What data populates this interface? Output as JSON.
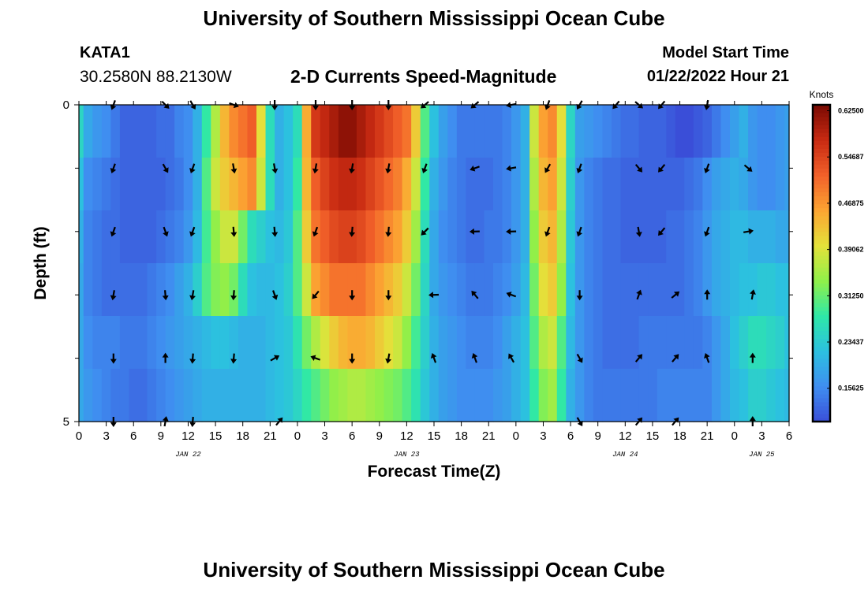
{
  "header": {
    "title": "University of Southern Mississippi Ocean Cube",
    "station": "KATA1",
    "coordinates": "30.2580N  88.2130W",
    "subtitle": "2-D Currents Speed-Magnitude",
    "model_start_label": "Model Start Time",
    "model_start_value": "01/22/2022 Hour 21"
  },
  "footer": {
    "title": "University of Southern Mississippi Ocean Cube"
  },
  "chart_data": {
    "type": "heatmap",
    "title": "2-D Currents Speed-Magnitude",
    "xlabel": "Forecast Time(Z)",
    "ylabel": "Depth (ft)",
    "xlim": [
      0,
      78
    ],
    "ylim": [
      0,
      5
    ],
    "x_ticks": [
      0,
      3,
      6,
      9,
      12,
      15,
      18,
      21,
      24,
      27,
      30,
      33,
      36,
      39,
      42,
      45,
      48,
      51,
      54,
      57,
      60,
      63,
      66,
      69,
      72,
      75,
      78
    ],
    "x_tick_labels": [
      "0",
      "3",
      "6",
      "9",
      "12",
      "15",
      "18",
      "21",
      "0",
      "3",
      "6",
      "9",
      "12",
      "15",
      "18",
      "21",
      "0",
      "3",
      "6",
      "9",
      "12",
      "15",
      "18",
      "21",
      "0",
      "3",
      "6"
    ],
    "y_tick_labels": [
      {
        "value": 0,
        "label": "0"
      },
      {
        "value": 5,
        "label": "5"
      }
    ],
    "y_minor_ticks": [
      1,
      2,
      3,
      4
    ],
    "date_labels": [
      {
        "x": 12,
        "label": "JAN 22"
      },
      {
        "x": 36,
        "label": "JAN 23"
      },
      {
        "x": 60,
        "label": "JAN 24"
      },
      {
        "x": 75,
        "label": "JAN 25"
      }
    ],
    "colorbar": {
      "units": "Knots",
      "min": 0.1,
      "max": 0.635,
      "ticks": [
        0.625,
        0.54687,
        0.46875,
        0.39062,
        0.3125,
        0.23437,
        0.15625
      ],
      "tick_labels": [
        "0.62500",
        "0.54687",
        "0.46875",
        "0.39062",
        "0.31250",
        "0.23437",
        "0.15625"
      ],
      "colors": [
        "#3a4ed8",
        "#3f8ef0",
        "#2cc0e0",
        "#2ee8a8",
        "#8ff04a",
        "#e4e23a",
        "#fca532",
        "#f2612a",
        "#c82a12",
        "#7a0a02"
      ]
    },
    "columns_x": [
      0,
      1,
      2,
      3,
      4,
      5,
      6,
      7,
      8,
      9,
      10,
      11,
      12,
      13,
      14,
      15,
      16,
      17,
      18,
      19,
      20,
      21,
      22,
      23,
      24,
      25,
      26,
      27,
      28,
      29,
      30,
      31,
      32,
      33,
      34,
      35,
      36,
      37,
      38,
      39,
      40,
      41,
      42,
      43,
      44,
      45,
      46,
      47,
      48,
      49,
      50,
      51,
      52,
      53,
      54,
      55,
      56,
      57,
      58,
      59,
      60,
      61,
      62,
      63,
      64,
      65,
      66,
      67,
      68,
      69,
      70,
      71,
      72,
      73,
      74,
      75,
      76,
      77,
      78
    ],
    "depth_rows": [
      0,
      1,
      2,
      3,
      4,
      5
    ],
    "speed_knots": [
      [
        0.25,
        0.19,
        0.17,
        0.16,
        0.14,
        0.12,
        0.12,
        0.12,
        0.12,
        0.13,
        0.13,
        0.15,
        0.16,
        0.2,
        0.28,
        0.36,
        0.44,
        0.48,
        0.5,
        0.52,
        0.4,
        0.26,
        0.2,
        0.22,
        0.26,
        0.45,
        0.56,
        0.58,
        0.6,
        0.62,
        0.62,
        0.6,
        0.58,
        0.56,
        0.54,
        0.52,
        0.5,
        0.42,
        0.3,
        0.22,
        0.18,
        0.16,
        0.14,
        0.14,
        0.14,
        0.14,
        0.14,
        0.15,
        0.17,
        0.2,
        0.38,
        0.46,
        0.48,
        0.4,
        0.25,
        0.18,
        0.17,
        0.16,
        0.15,
        0.14,
        0.13,
        0.13,
        0.12,
        0.12,
        0.12,
        0.11,
        0.1,
        0.1,
        0.11,
        0.12,
        0.14,
        0.16,
        0.18,
        0.2,
        0.17,
        0.16,
        0.16,
        0.17,
        0.18
      ],
      [
        0.22,
        0.16,
        0.15,
        0.14,
        0.13,
        0.12,
        0.12,
        0.12,
        0.12,
        0.12,
        0.13,
        0.14,
        0.16,
        0.2,
        0.3,
        0.38,
        0.42,
        0.44,
        0.46,
        0.48,
        0.38,
        0.26,
        0.2,
        0.22,
        0.28,
        0.44,
        0.52,
        0.55,
        0.57,
        0.58,
        0.58,
        0.57,
        0.55,
        0.53,
        0.51,
        0.49,
        0.45,
        0.38,
        0.28,
        0.2,
        0.17,
        0.15,
        0.14,
        0.13,
        0.13,
        0.13,
        0.14,
        0.15,
        0.17,
        0.2,
        0.36,
        0.44,
        0.46,
        0.38,
        0.24,
        0.17,
        0.15,
        0.14,
        0.13,
        0.13,
        0.12,
        0.12,
        0.12,
        0.12,
        0.12,
        0.12,
        0.12,
        0.13,
        0.14,
        0.16,
        0.18,
        0.19,
        0.2,
        0.19,
        0.17,
        0.16,
        0.16,
        0.17,
        0.18
      ],
      [
        0.2,
        0.15,
        0.14,
        0.13,
        0.13,
        0.12,
        0.12,
        0.12,
        0.12,
        0.13,
        0.14,
        0.15,
        0.17,
        0.21,
        0.29,
        0.34,
        0.38,
        0.38,
        0.32,
        0.26,
        0.24,
        0.22,
        0.21,
        0.23,
        0.3,
        0.42,
        0.5,
        0.52,
        0.54,
        0.55,
        0.55,
        0.54,
        0.52,
        0.5,
        0.48,
        0.46,
        0.42,
        0.35,
        0.26,
        0.19,
        0.16,
        0.15,
        0.14,
        0.13,
        0.13,
        0.14,
        0.14,
        0.15,
        0.17,
        0.2,
        0.34,
        0.42,
        0.44,
        0.36,
        0.23,
        0.17,
        0.15,
        0.14,
        0.13,
        0.13,
        0.12,
        0.12,
        0.12,
        0.12,
        0.12,
        0.13,
        0.13,
        0.14,
        0.15,
        0.17,
        0.19,
        0.2,
        0.21,
        0.21,
        0.2,
        0.2,
        0.2,
        0.19,
        0.19
      ],
      [
        0.19,
        0.15,
        0.14,
        0.13,
        0.13,
        0.13,
        0.13,
        0.13,
        0.14,
        0.15,
        0.16,
        0.18,
        0.2,
        0.24,
        0.3,
        0.33,
        0.34,
        0.32,
        0.26,
        0.22,
        0.21,
        0.21,
        0.22,
        0.24,
        0.3,
        0.38,
        0.46,
        0.48,
        0.5,
        0.5,
        0.5,
        0.5,
        0.48,
        0.46,
        0.44,
        0.42,
        0.38,
        0.32,
        0.25,
        0.19,
        0.17,
        0.16,
        0.15,
        0.14,
        0.14,
        0.14,
        0.15,
        0.16,
        0.18,
        0.21,
        0.32,
        0.4,
        0.42,
        0.34,
        0.22,
        0.17,
        0.15,
        0.14,
        0.13,
        0.13,
        0.13,
        0.13,
        0.13,
        0.13,
        0.13,
        0.13,
        0.13,
        0.14,
        0.15,
        0.17,
        0.19,
        0.2,
        0.21,
        0.22,
        0.22,
        0.23,
        0.23,
        0.22,
        0.22
      ],
      [
        0.19,
        0.16,
        0.15,
        0.15,
        0.15,
        0.14,
        0.14,
        0.14,
        0.15,
        0.16,
        0.17,
        0.18,
        0.19,
        0.2,
        0.21,
        0.22,
        0.22,
        0.21,
        0.2,
        0.2,
        0.2,
        0.21,
        0.22,
        0.23,
        0.27,
        0.32,
        0.36,
        0.39,
        0.42,
        0.44,
        0.45,
        0.45,
        0.44,
        0.42,
        0.4,
        0.38,
        0.34,
        0.29,
        0.24,
        0.2,
        0.18,
        0.17,
        0.16,
        0.15,
        0.15,
        0.15,
        0.16,
        0.18,
        0.2,
        0.22,
        0.3,
        0.36,
        0.38,
        0.3,
        0.21,
        0.17,
        0.15,
        0.14,
        0.13,
        0.13,
        0.13,
        0.13,
        0.14,
        0.14,
        0.14,
        0.14,
        0.14,
        0.14,
        0.14,
        0.15,
        0.17,
        0.19,
        0.22,
        0.24,
        0.26,
        0.26,
        0.25,
        0.24,
        0.22
      ],
      [
        0.19,
        0.17,
        0.16,
        0.15,
        0.14,
        0.14,
        0.13,
        0.13,
        0.14,
        0.15,
        0.16,
        0.17,
        0.18,
        0.19,
        0.2,
        0.2,
        0.2,
        0.2,
        0.2,
        0.2,
        0.2,
        0.21,
        0.22,
        0.23,
        0.25,
        0.28,
        0.3,
        0.32,
        0.34,
        0.35,
        0.36,
        0.36,
        0.35,
        0.34,
        0.33,
        0.32,
        0.3,
        0.27,
        0.23,
        0.2,
        0.18,
        0.17,
        0.16,
        0.16,
        0.16,
        0.16,
        0.17,
        0.18,
        0.2,
        0.22,
        0.28,
        0.33,
        0.35,
        0.28,
        0.2,
        0.17,
        0.15,
        0.14,
        0.14,
        0.14,
        0.14,
        0.14,
        0.14,
        0.14,
        0.15,
        0.15,
        0.15,
        0.15,
        0.15,
        0.15,
        0.17,
        0.19,
        0.21,
        0.22,
        0.24,
        0.24,
        0.23,
        0.22,
        0.21
      ]
    ],
    "vectors": [
      {
        "x": 3.8,
        "depth": 0,
        "dir": 200
      },
      {
        "x": 9.5,
        "depth": 0,
        "dir": 135
      },
      {
        "x": 12.5,
        "depth": 0,
        "dir": 150
      },
      {
        "x": 17,
        "depth": 0,
        "dir": 110
      },
      {
        "x": 21.5,
        "depth": 0,
        "dir": 180
      },
      {
        "x": 26,
        "depth": 0,
        "dir": 180
      },
      {
        "x": 30,
        "depth": 0,
        "dir": 180
      },
      {
        "x": 34,
        "depth": 0,
        "dir": 180
      },
      {
        "x": 38,
        "depth": 0,
        "dir": 230
      },
      {
        "x": 43.5,
        "depth": 0,
        "dir": 230
      },
      {
        "x": 47.5,
        "depth": 0,
        "dir": 260
      },
      {
        "x": 51.5,
        "depth": 0,
        "dir": 200
      },
      {
        "x": 55,
        "depth": 0,
        "dir": 210
      },
      {
        "x": 59,
        "depth": 0,
        "dir": 220
      },
      {
        "x": 61.5,
        "depth": 0,
        "dir": 130
      },
      {
        "x": 64,
        "depth": 0,
        "dir": 220
      },
      {
        "x": 69,
        "depth": 0,
        "dir": 190
      },
      {
        "x": 3.8,
        "depth": 1,
        "dir": 200
      },
      {
        "x": 9.5,
        "depth": 1,
        "dir": 150
      },
      {
        "x": 12.5,
        "depth": 1,
        "dir": 200
      },
      {
        "x": 17,
        "depth": 1,
        "dir": 170
      },
      {
        "x": 21.5,
        "depth": 1,
        "dir": 170
      },
      {
        "x": 26,
        "depth": 1,
        "dir": 190
      },
      {
        "x": 30,
        "depth": 1,
        "dir": 190
      },
      {
        "x": 34,
        "depth": 1,
        "dir": 190
      },
      {
        "x": 38,
        "depth": 1,
        "dir": 200
      },
      {
        "x": 43.5,
        "depth": 1,
        "dir": 250
      },
      {
        "x": 47.5,
        "depth": 1,
        "dir": 260
      },
      {
        "x": 51.5,
        "depth": 1,
        "dir": 210
      },
      {
        "x": 55,
        "depth": 1,
        "dir": 200
      },
      {
        "x": 61.5,
        "depth": 1,
        "dir": 140
      },
      {
        "x": 64,
        "depth": 1,
        "dir": 220
      },
      {
        "x": 69,
        "depth": 1,
        "dir": 200
      },
      {
        "x": 73.5,
        "depth": 1,
        "dir": 130
      },
      {
        "x": 3.8,
        "depth": 2,
        "dir": 200
      },
      {
        "x": 9.5,
        "depth": 2,
        "dir": 160
      },
      {
        "x": 12.5,
        "depth": 2,
        "dir": 200
      },
      {
        "x": 17,
        "depth": 2,
        "dir": 175
      },
      {
        "x": 21.5,
        "depth": 2,
        "dir": 175
      },
      {
        "x": 26,
        "depth": 2,
        "dir": 200
      },
      {
        "x": 30,
        "depth": 2,
        "dir": 185
      },
      {
        "x": 34,
        "depth": 2,
        "dir": 185
      },
      {
        "x": 38,
        "depth": 2,
        "dir": 225
      },
      {
        "x": 43.5,
        "depth": 2,
        "dir": 268
      },
      {
        "x": 47.5,
        "depth": 2,
        "dir": 268
      },
      {
        "x": 51.5,
        "depth": 2,
        "dir": 200
      },
      {
        "x": 55,
        "depth": 2,
        "dir": 200
      },
      {
        "x": 61.5,
        "depth": 2,
        "dir": 170
      },
      {
        "x": 64,
        "depth": 2,
        "dir": 220
      },
      {
        "x": 69,
        "depth": 2,
        "dir": 200
      },
      {
        "x": 73.5,
        "depth": 2,
        "dir": 80
      },
      {
        "x": 3.8,
        "depth": 3,
        "dir": 190
      },
      {
        "x": 9.5,
        "depth": 3,
        "dir": 175
      },
      {
        "x": 12.5,
        "depth": 3,
        "dir": 190
      },
      {
        "x": 17,
        "depth": 3,
        "dir": 185
      },
      {
        "x": 21.5,
        "depth": 3,
        "dir": 160
      },
      {
        "x": 26,
        "depth": 3,
        "dir": 220
      },
      {
        "x": 30,
        "depth": 3,
        "dir": 180
      },
      {
        "x": 34,
        "depth": 3,
        "dir": 180
      },
      {
        "x": 39,
        "depth": 3,
        "dir": 268
      },
      {
        "x": 43.5,
        "depth": 3,
        "dir": 320
      },
      {
        "x": 47.5,
        "depth": 3,
        "dir": 290
      },
      {
        "x": 55,
        "depth": 3,
        "dir": 180
      },
      {
        "x": 61.5,
        "depth": 3,
        "dir": 20
      },
      {
        "x": 65.5,
        "depth": 3,
        "dir": 50
      },
      {
        "x": 69,
        "depth": 3,
        "dir": 0
      },
      {
        "x": 74,
        "depth": 3,
        "dir": 10
      },
      {
        "x": 3.8,
        "depth": 4,
        "dir": 180
      },
      {
        "x": 9.5,
        "depth": 4,
        "dir": 0
      },
      {
        "x": 12.5,
        "depth": 4,
        "dir": 185
      },
      {
        "x": 17,
        "depth": 4,
        "dir": 185
      },
      {
        "x": 21.5,
        "depth": 4,
        "dir": 60
      },
      {
        "x": 26,
        "depth": 4,
        "dir": 290
      },
      {
        "x": 30,
        "depth": 4,
        "dir": 180
      },
      {
        "x": 34,
        "depth": 4,
        "dir": 190
      },
      {
        "x": 39,
        "depth": 4,
        "dir": 340
      },
      {
        "x": 43.5,
        "depth": 4,
        "dir": 340
      },
      {
        "x": 47.5,
        "depth": 4,
        "dir": 330
      },
      {
        "x": 55,
        "depth": 4,
        "dir": 150
      },
      {
        "x": 61.5,
        "depth": 4,
        "dir": 40
      },
      {
        "x": 65.5,
        "depth": 4,
        "dir": 40
      },
      {
        "x": 69,
        "depth": 4,
        "dir": 340
      },
      {
        "x": 74,
        "depth": 4,
        "dir": 0
      },
      {
        "x": 3.8,
        "depth": 5,
        "dir": 180
      },
      {
        "x": 9.5,
        "depth": 5,
        "dir": 10
      },
      {
        "x": 12.5,
        "depth": 5,
        "dir": 185
      },
      {
        "x": 22,
        "depth": 5,
        "dir": 40
      },
      {
        "x": 55,
        "depth": 5,
        "dir": 150
      },
      {
        "x": 61.5,
        "depth": 5,
        "dir": 40
      },
      {
        "x": 65.5,
        "depth": 5,
        "dir": 40
      },
      {
        "x": 74,
        "depth": 5,
        "dir": 0
      }
    ]
  }
}
